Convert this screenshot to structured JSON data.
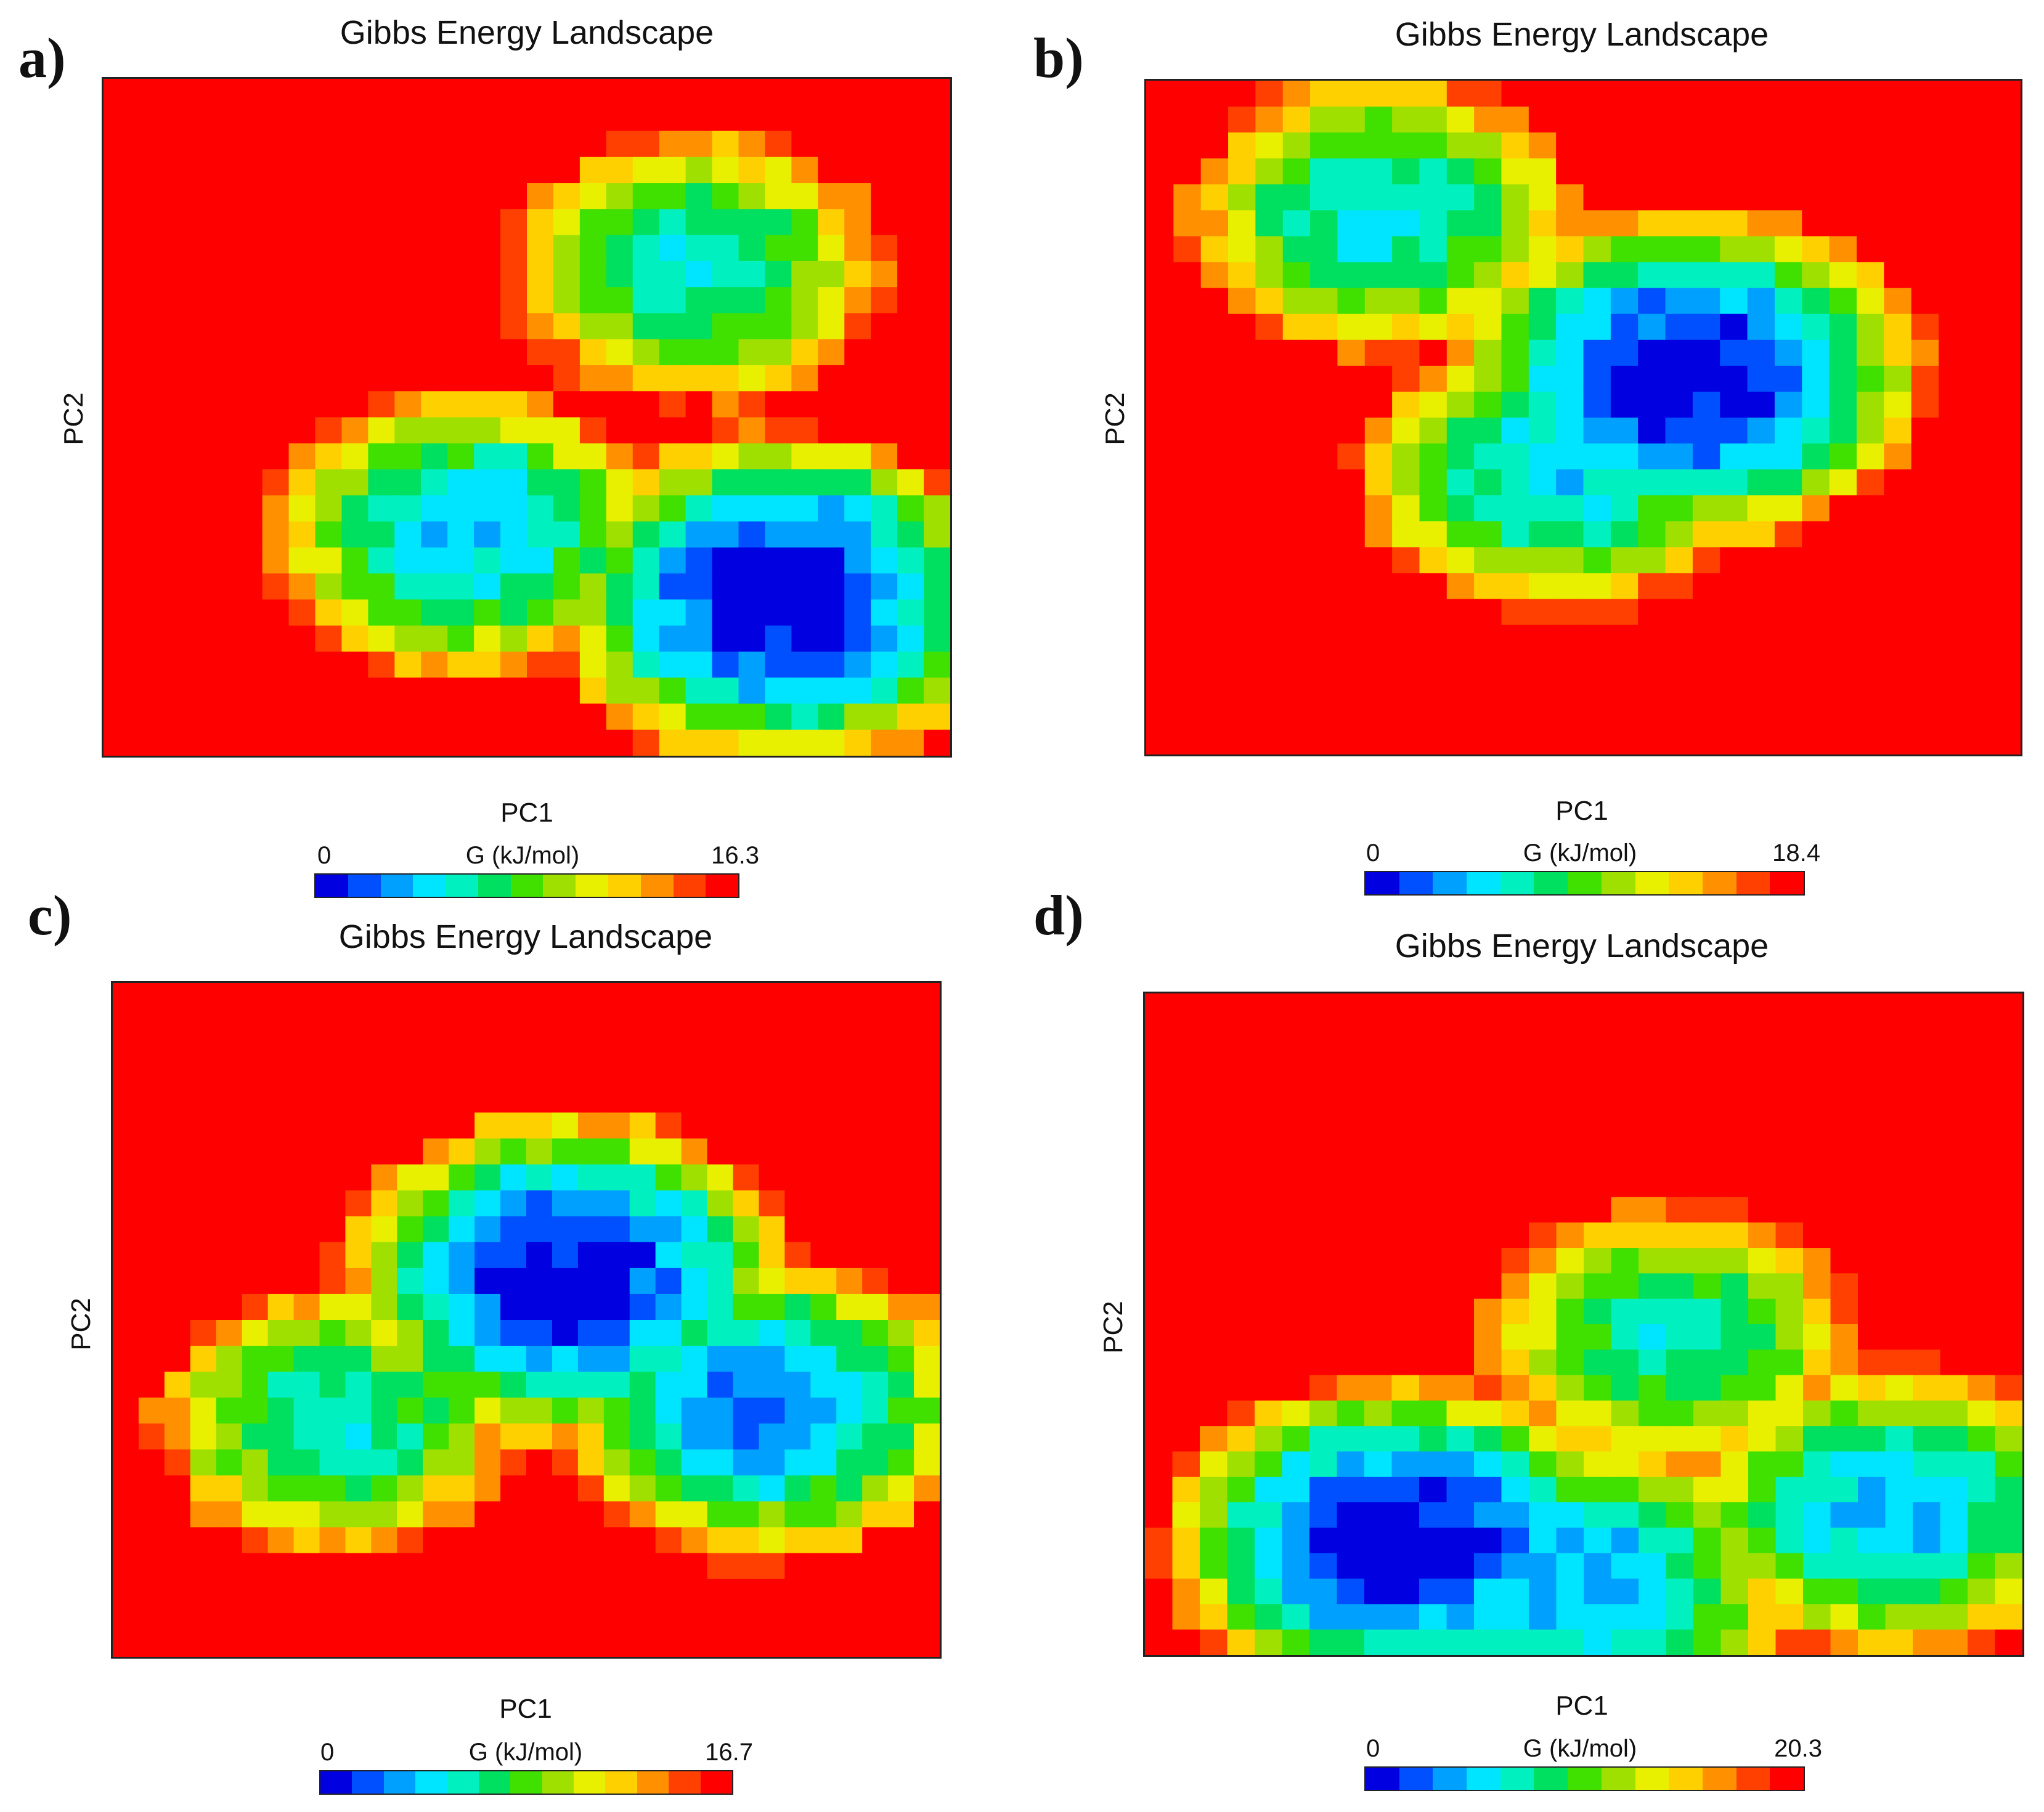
{
  "colors": {
    "scale": [
      "#0000e0",
      "#0050ff",
      "#00a0ff",
      "#00e5ff",
      "#00f0c0",
      "#00e060",
      "#40e000",
      "#a0e000",
      "#e8f000",
      "#ffd000",
      "#ff9000",
      "#ff4000",
      "#ff0000"
    ],
    "frame": "#222222"
  },
  "chart_data": [
    {
      "type": "heatmap",
      "panel_label": "a)",
      "title": "Gibbs Energy Landscape",
      "xlabel": "PC1",
      "ylabel": "PC2",
      "colorbar": {
        "label": "G (kJ/mol)",
        "min": 0,
        "max": 16.3,
        "min_label": "0",
        "max_label": "16.3"
      },
      "grid": "32 x 26",
      "wells": [
        {
          "pc1": 0.8,
          "pc2": 0.23,
          "G": 0.0
        },
        {
          "pc1": 0.43,
          "pc2": 0.33,
          "G": 3.8
        },
        {
          "pc1": 0.7,
          "pc2": 0.72,
          "G": 5.2
        }
      ]
    },
    {
      "type": "heatmap",
      "panel_label": "b)",
      "title": "Gibbs Energy Landscape",
      "xlabel": "PC1",
      "ylabel": "PC2",
      "colorbar": {
        "label": "G (kJ/mol)",
        "min": 0,
        "max": 18.4,
        "min_label": "0",
        "max_label": "18.4"
      },
      "grid": "32 x 26",
      "wells": [
        {
          "pc1": 0.62,
          "pc2": 0.56,
          "G": 0.0
        },
        {
          "pc1": 0.27,
          "pc2": 0.8,
          "G": 5.5
        },
        {
          "pc1": 0.47,
          "pc2": 0.42,
          "G": 5.0
        }
      ]
    },
    {
      "type": "heatmap",
      "panel_label": "c)",
      "title": "Gibbs Energy Landscape",
      "xlabel": "PC1",
      "ylabel": "PC2",
      "colorbar": {
        "label": "G (kJ/mol)",
        "min": 0,
        "max": 16.7,
        "min_label": "0",
        "max_label": "16.7"
      },
      "grid": "32 x 26",
      "wells": [
        {
          "pc1": 0.55,
          "pc2": 0.56,
          "G": 0.0
        },
        {
          "pc1": 0.79,
          "pc2": 0.37,
          "G": 2.5
        },
        {
          "pc1": 0.27,
          "pc2": 0.35,
          "G": 5.5
        }
      ]
    },
    {
      "type": "heatmap",
      "panel_label": "d)",
      "title": "Gibbs Energy Landscape",
      "xlabel": "PC1",
      "ylabel": "PC2",
      "colorbar": {
        "label": "G (kJ/mol)",
        "min": 0,
        "max": 20.3,
        "min_label": "0",
        "max_label": "20.3"
      },
      "grid": "32 x 26",
      "wells": [
        {
          "pc1": 0.29,
          "pc2": 0.17,
          "G": 0.0
        },
        {
          "pc1": 0.5,
          "pc2": 0.11,
          "G": 4.0
        },
        {
          "pc1": 0.85,
          "pc2": 0.22,
          "G": 4.5
        },
        {
          "pc1": 0.6,
          "pc2": 0.48,
          "G": 7.0
        }
      ]
    }
  ]
}
